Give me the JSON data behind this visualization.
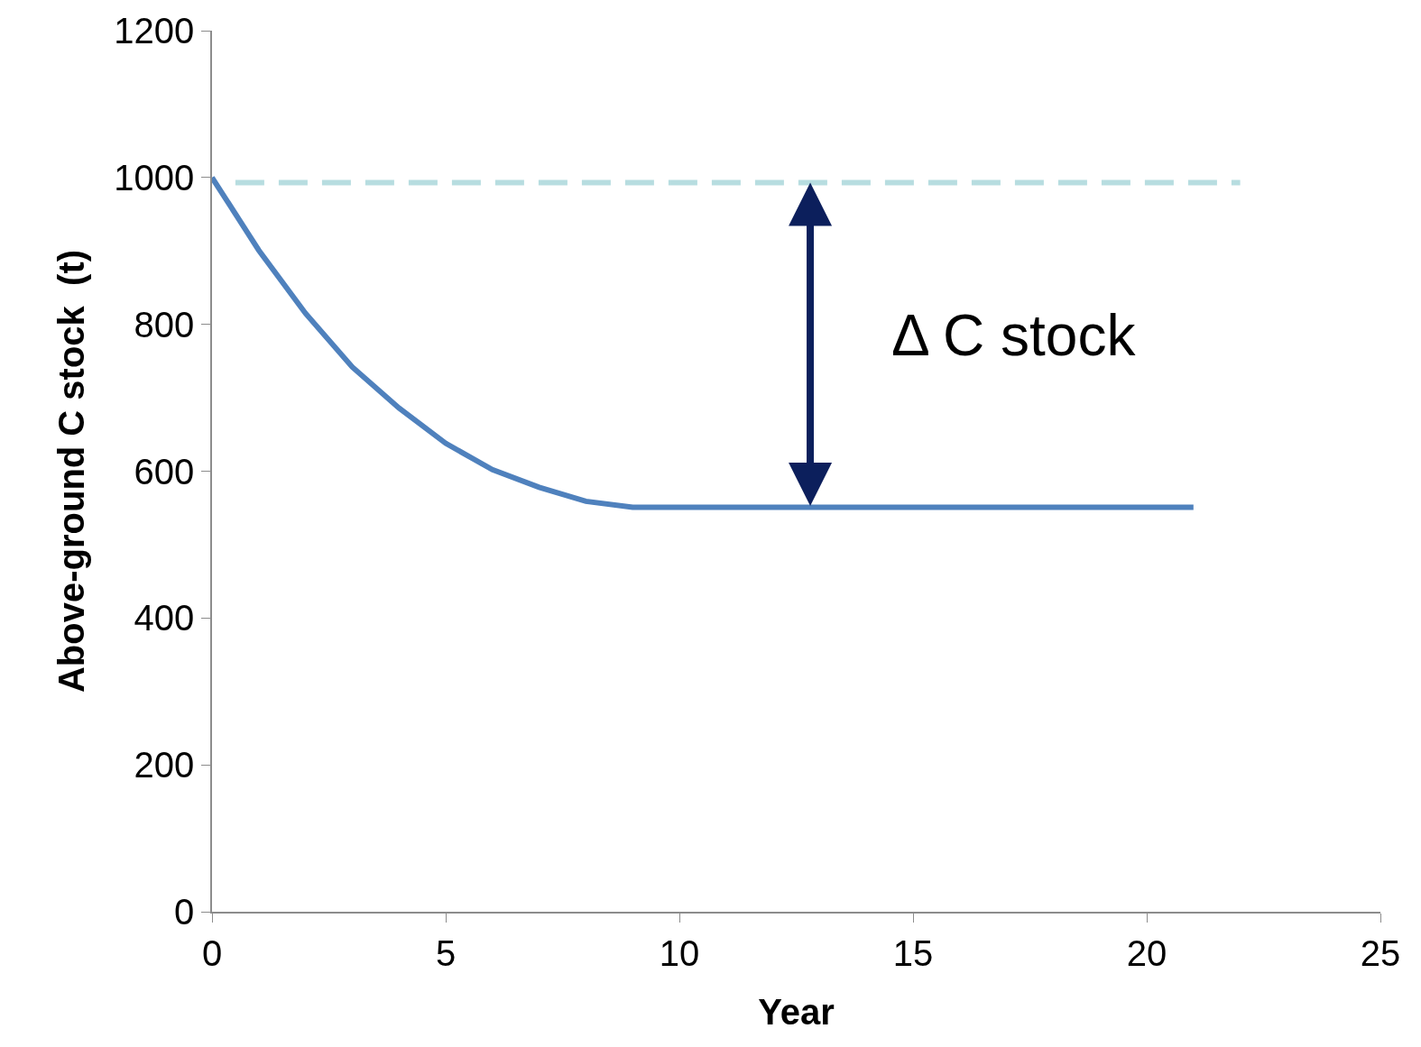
{
  "chart_data": {
    "type": "line",
    "xlabel": "Year",
    "ylabel": "Above-ground C stock  (t)",
    "xlim": [
      0,
      25
    ],
    "xticks": [
      0,
      5,
      10,
      15,
      20,
      25
    ],
    "ylim": [
      0,
      1200
    ],
    "yticks": [
      0,
      200,
      400,
      600,
      800,
      1000,
      1200
    ],
    "marker": "none",
    "series": [
      {
        "color": "#4f81bd",
        "line_style": "solid",
        "x": [
          0,
          1,
          2,
          3,
          4,
          5,
          6,
          7,
          8,
          9,
          21
        ],
        "values": [
          1000,
          901,
          815,
          742,
          686,
          638,
          602,
          578,
          559,
          551,
          551
        ]
      },
      {
        "color": "#b7dde0",
        "line_style": "dashed",
        "x": [
          0.5,
          22
        ],
        "values": [
          993,
          993
        ]
      }
    ],
    "annotations": [
      "Δ C stock"
    ]
  }
}
